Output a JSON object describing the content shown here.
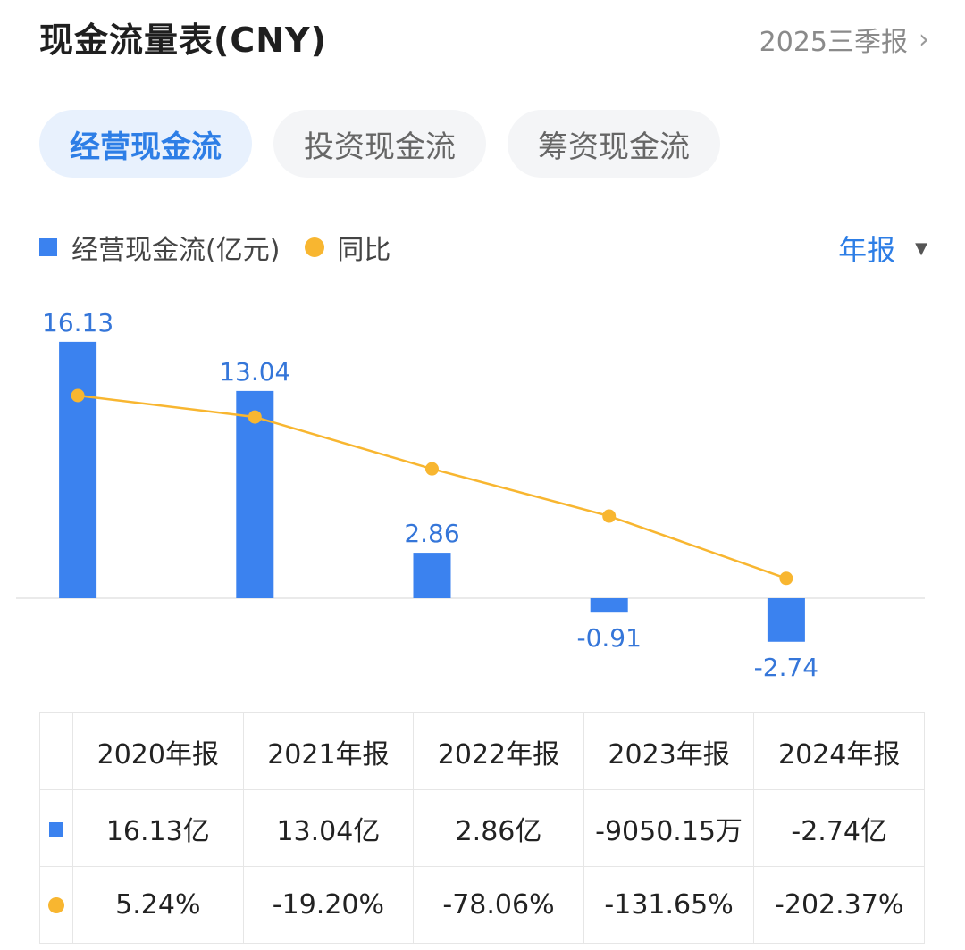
{
  "header": {
    "title": "现金流量表(CNY)",
    "period_label": "2025三季报",
    "chevron": "›"
  },
  "tabs": [
    {
      "label": "经营现金流",
      "active": true
    },
    {
      "label": "投资现金流",
      "active": false
    },
    {
      "label": "筹资现金流",
      "active": false
    }
  ],
  "legend": {
    "bar_label": "经营现金流(亿元)",
    "line_label": "同比"
  },
  "period_select": {
    "label": "年报",
    "caret": "▼"
  },
  "colors": {
    "bar": "#3b82ef",
    "line": "#f8b630",
    "positive": "#e0443e",
    "negative": "#1f9a5c"
  },
  "chart_data": {
    "type": "bar",
    "categories": [
      "2020年报",
      "2021年报",
      "2022年报",
      "2023年报",
      "2024年报"
    ],
    "series": [
      {
        "name": "经营现金流(亿元)",
        "type": "bar",
        "values": [
          16.13,
          13.04,
          2.86,
          -0.91,
          -2.74
        ]
      },
      {
        "name": "同比",
        "type": "line",
        "values": [
          5.24,
          -19.2,
          -78.06,
          -131.65,
          -202.37
        ]
      }
    ],
    "bar_labels": [
      "16.13",
      "13.04",
      "2.86",
      "-0.91",
      "-2.74"
    ],
    "title": "",
    "xlabel": "",
    "ylabel": ""
  },
  "table": {
    "headers": [
      "2020年报",
      "2021年报",
      "2022年报",
      "2023年报",
      "2024年报"
    ],
    "cash_flow": [
      "16.13亿",
      "13.04亿",
      "2.86亿",
      "-9050.15万",
      "-2.74亿"
    ],
    "yoy": [
      "5.24%",
      "-19.20%",
      "-78.06%",
      "-131.65%",
      "-202.37%"
    ]
  }
}
